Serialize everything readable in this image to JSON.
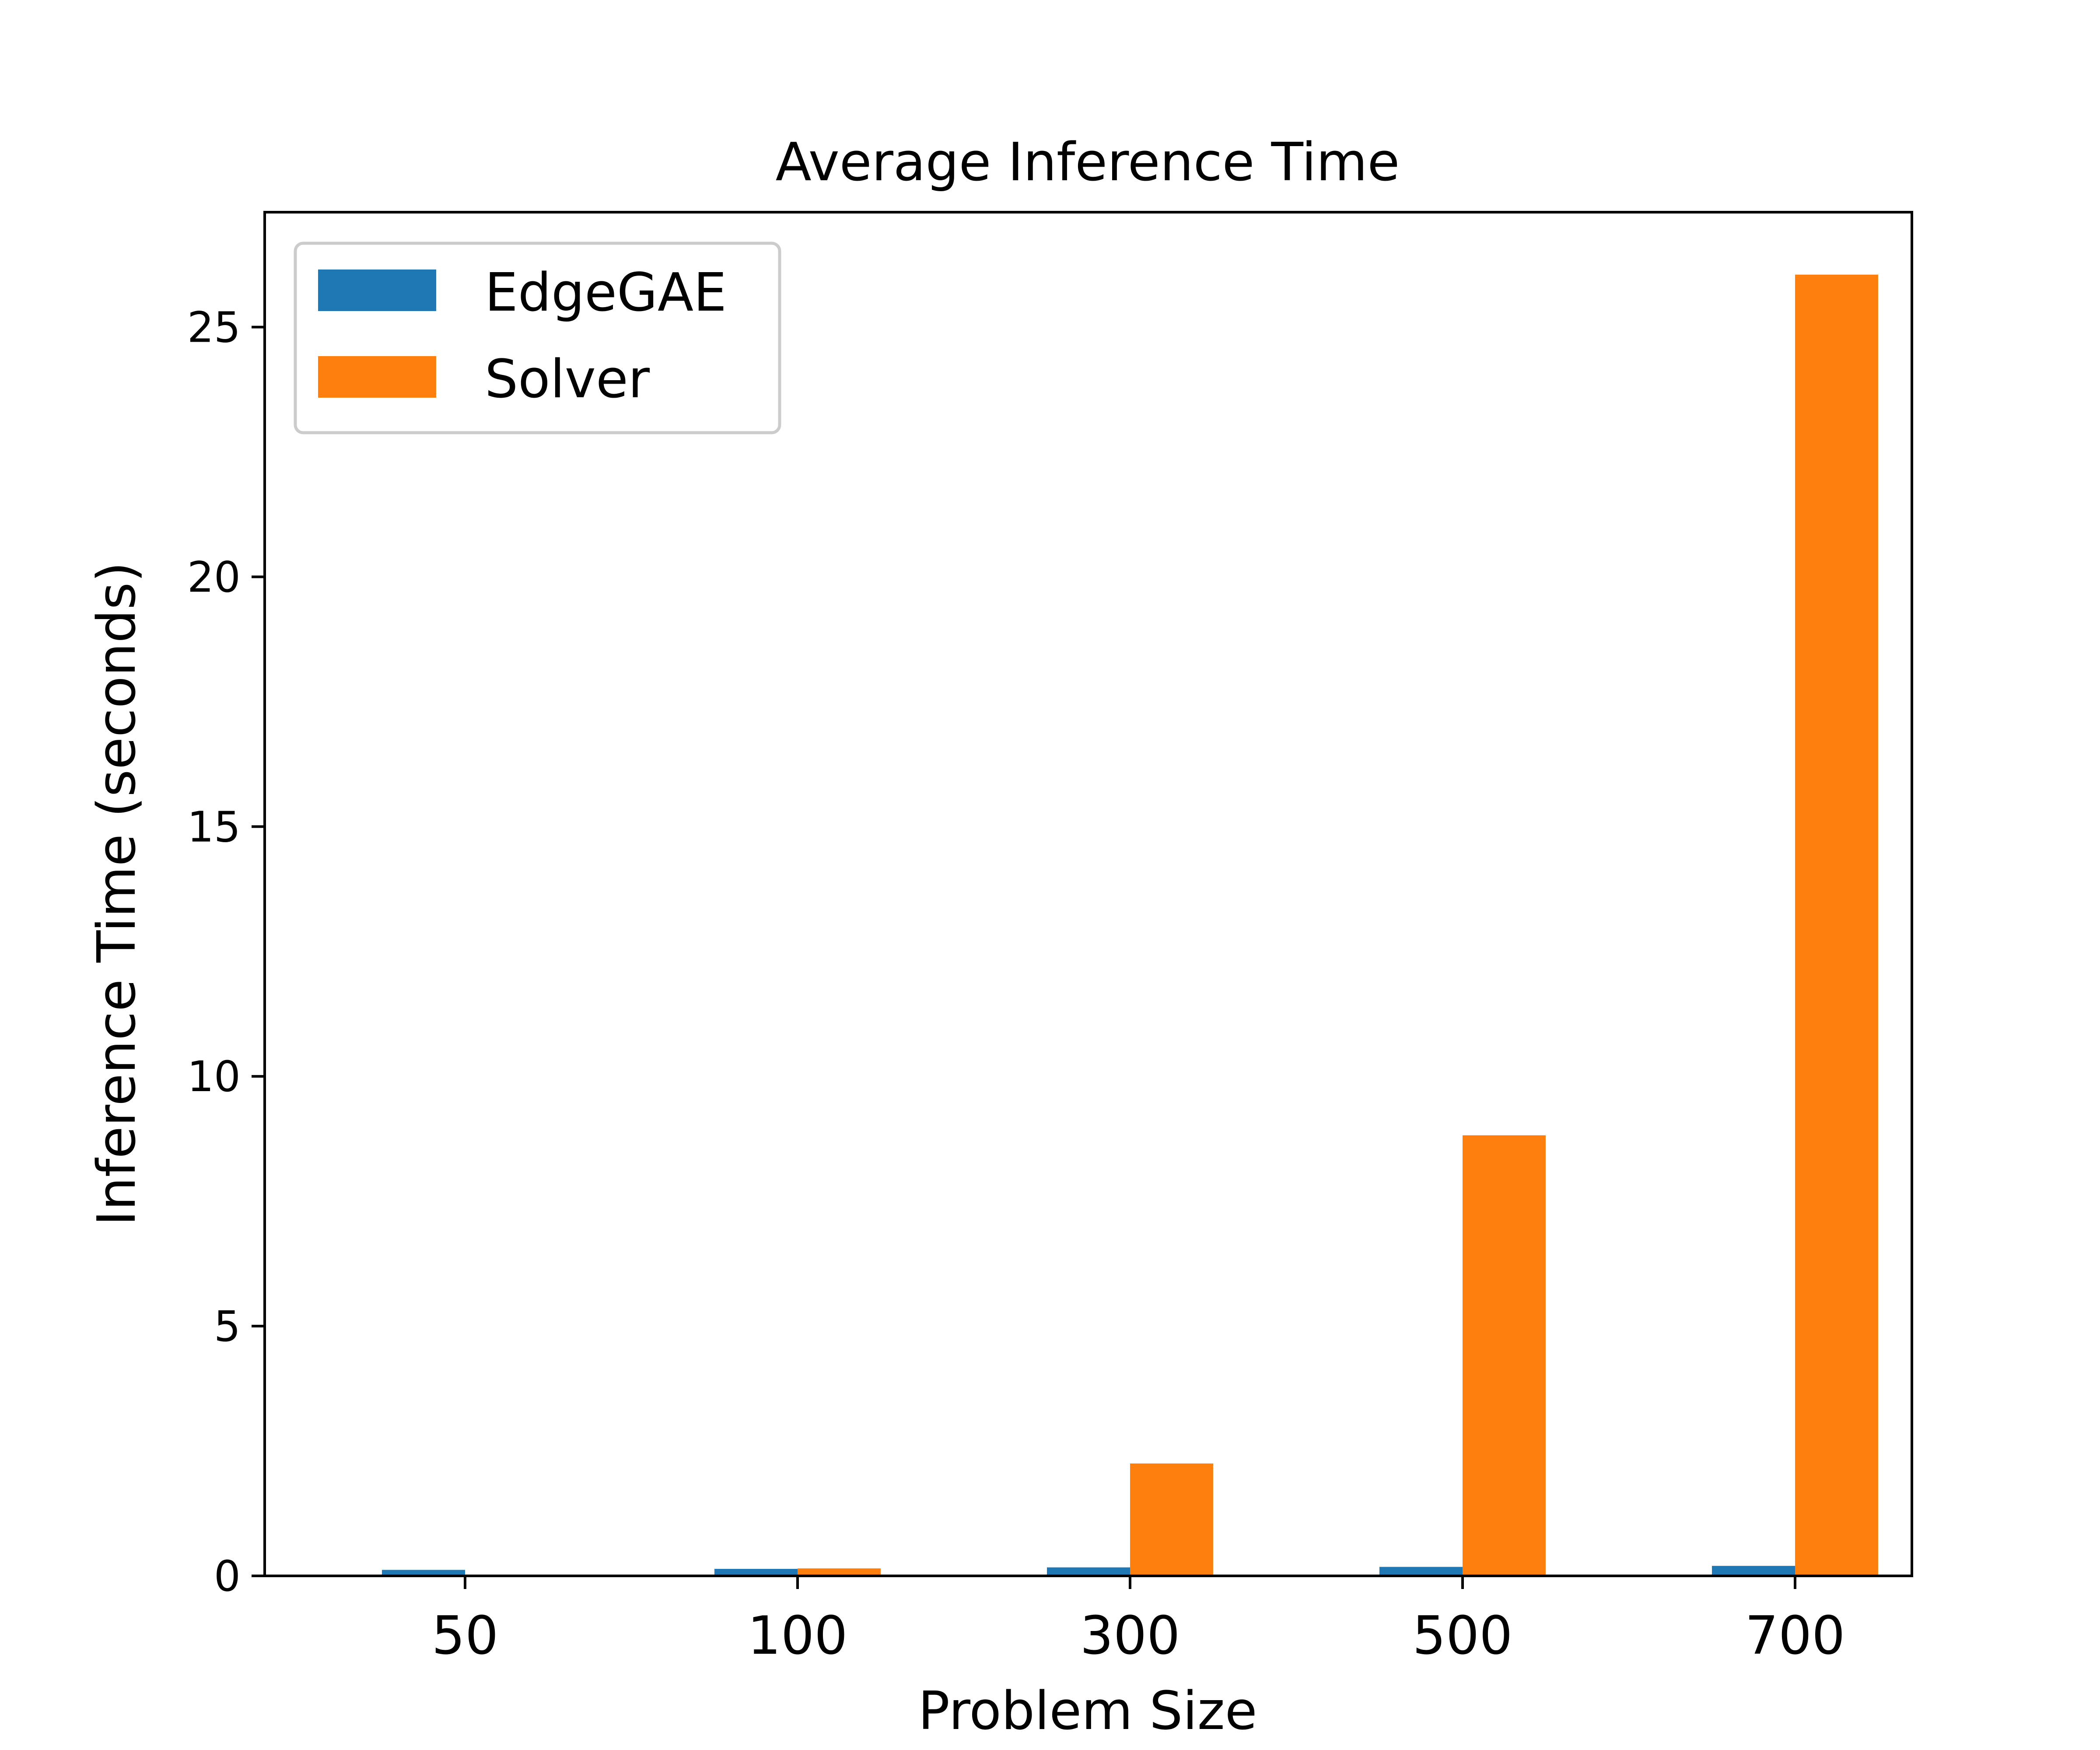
{
  "chart_data": {
    "type": "bar",
    "title": "Average Inference Time",
    "xlabel": "Problem Size",
    "ylabel": "Inference Time (seconds)",
    "categories": [
      "50",
      "100",
      "300",
      "500",
      "700"
    ],
    "series": [
      {
        "name": "EdgeGAE",
        "color": "#1f77b4",
        "values": [
          0.12,
          0.14,
          0.17,
          0.18,
          0.2
        ]
      },
      {
        "name": "Solver",
        "color": "#ff7f0e",
        "values": [
          0.02,
          0.15,
          2.25,
          8.82,
          26.05
        ]
      }
    ],
    "ylim": [
      0,
      27.3
    ],
    "yticks": [
      0,
      5,
      10,
      15,
      20,
      25
    ],
    "grid": false,
    "legend_position": "top-left"
  }
}
